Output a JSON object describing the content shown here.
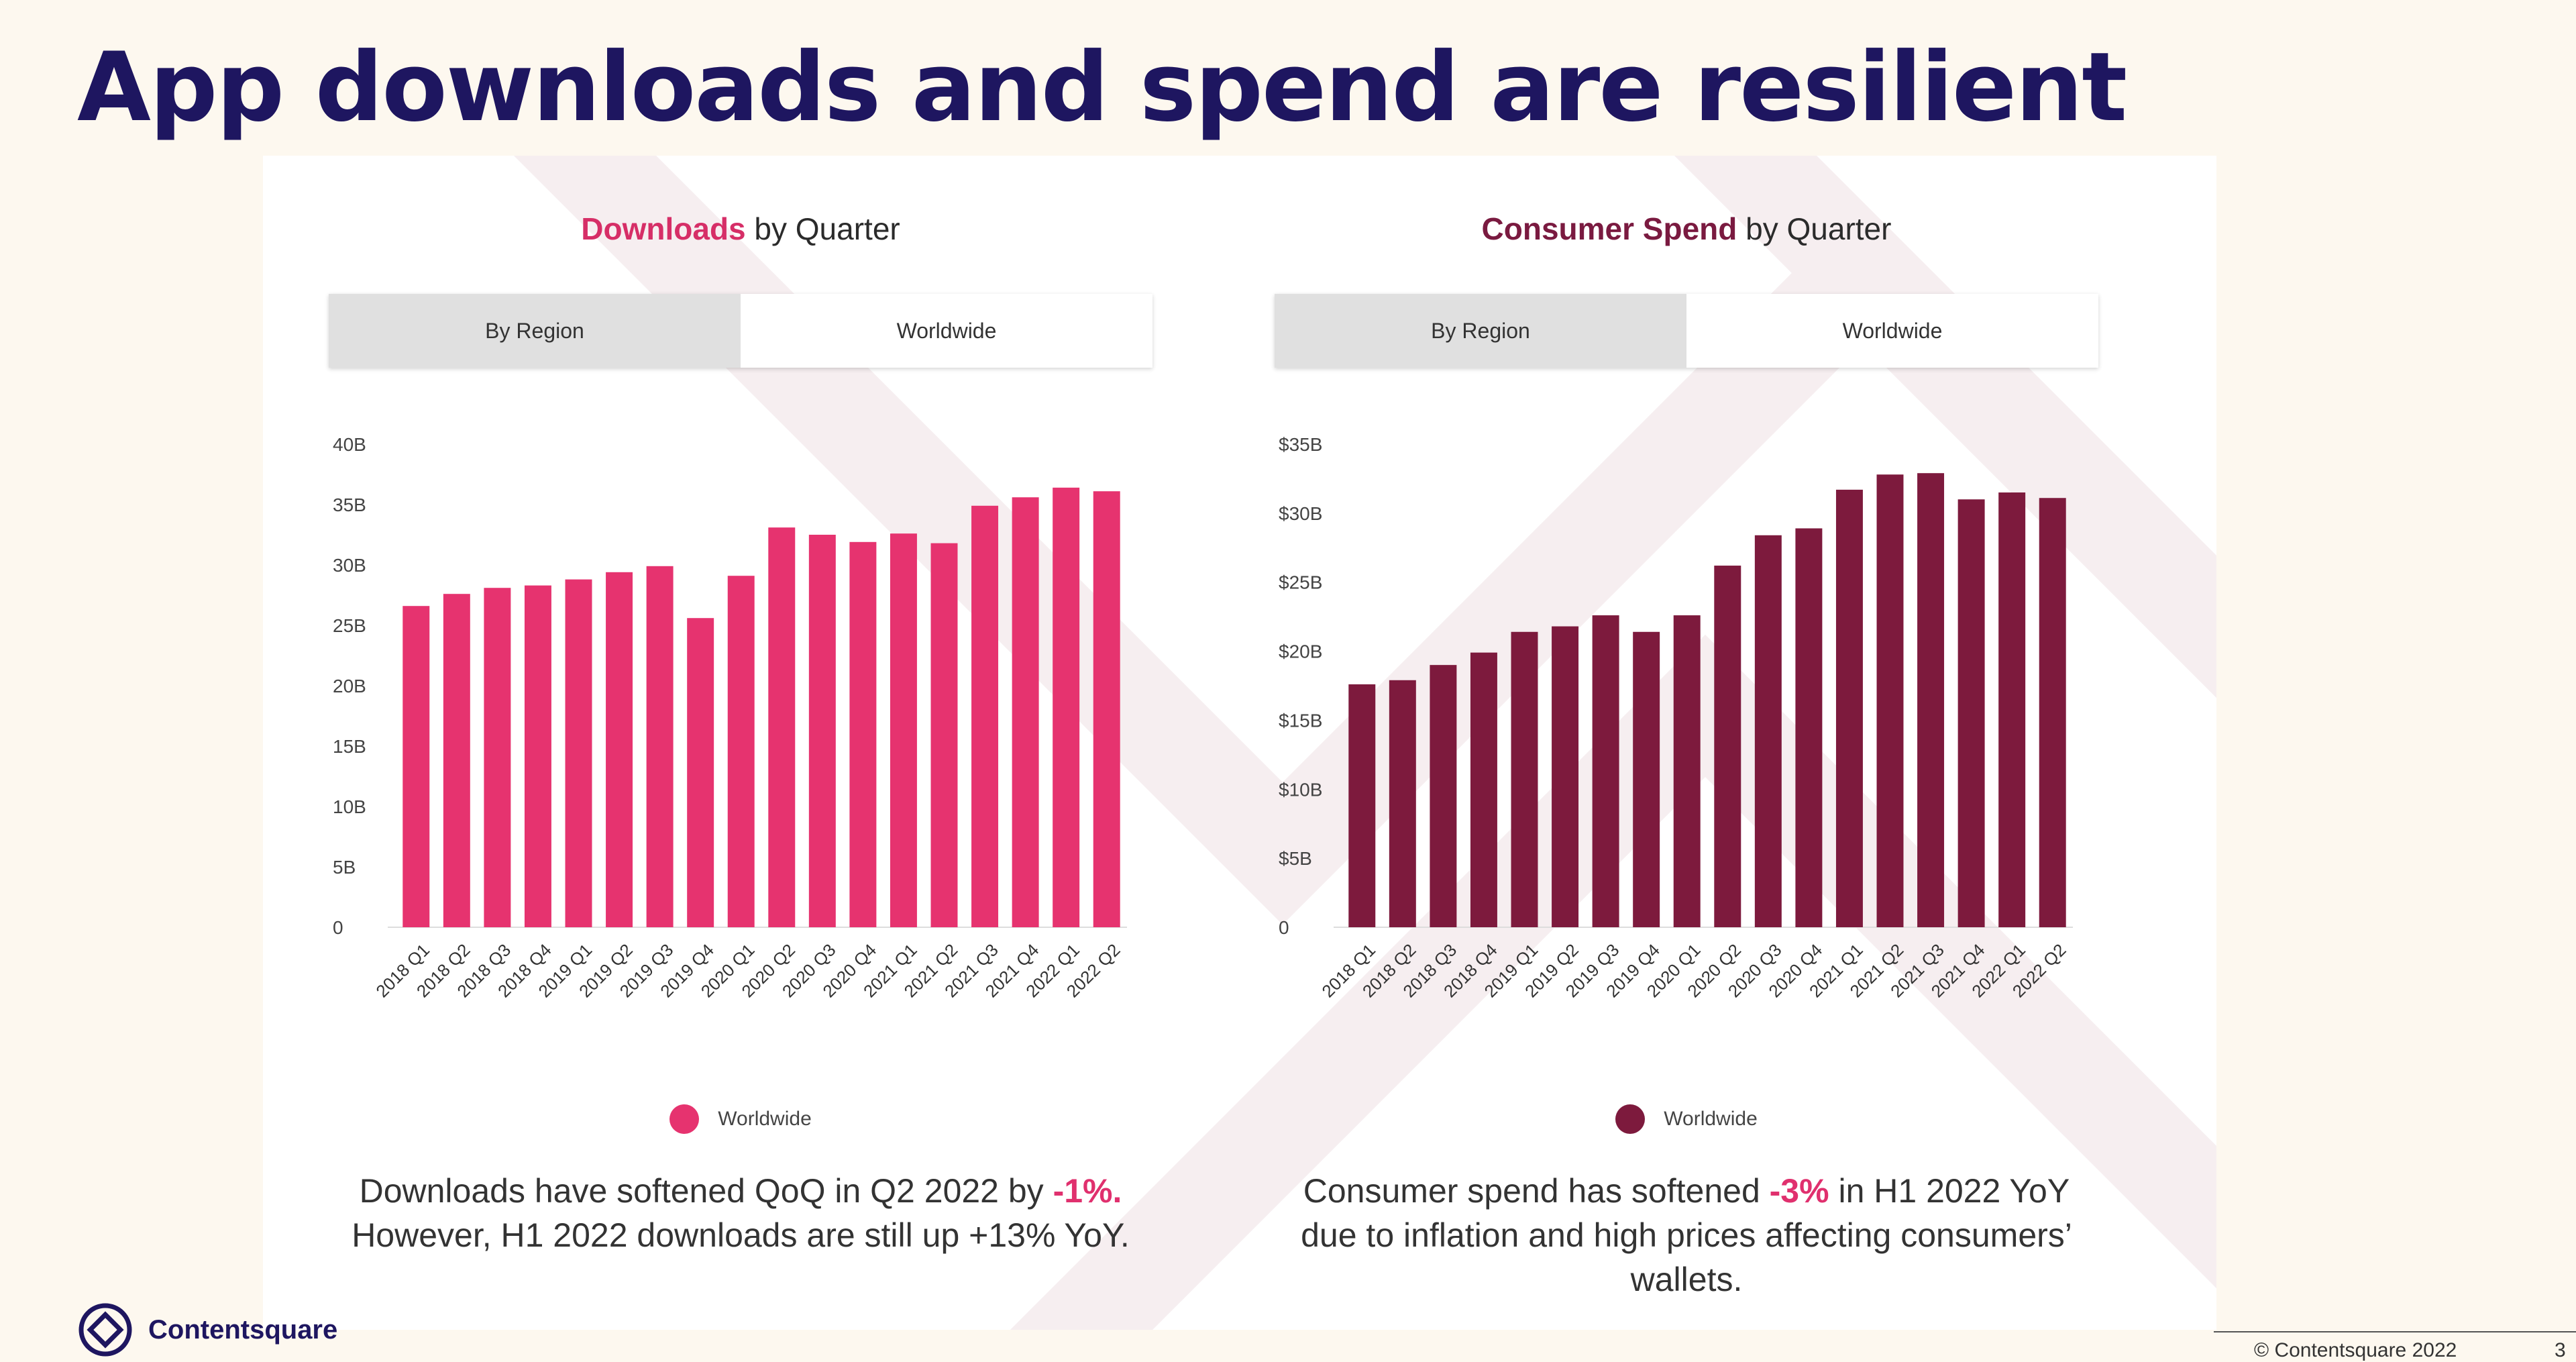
{
  "slide": {
    "title": "App downloads and spend are resilient",
    "brand": "Contentsquare",
    "footer": "© Contentsquare 2022",
    "page_number": "3"
  },
  "tabs": {
    "region": "By Region",
    "worldwide": "Worldwide"
  },
  "colors": {
    "downloads": "#e6336f",
    "spend": "#7d1a3d",
    "title": "#1e1660",
    "accent": "#e0306e"
  },
  "downloads": {
    "title_highlight": "Downloads",
    "title_rest": " by Quarter",
    "caption_a": "Downloads have softened QoQ in Q2 2022 by ",
    "caption_em": "-1%.",
    "caption_b": " However, H1 2022 downloads are still up +13% YoY."
  },
  "spend": {
    "title_highlight": "Consumer Spend",
    "title_rest": " by Quarter",
    "caption_a": "Consumer spend has softened ",
    "caption_em": "-3%",
    "caption_b": " in H1 2022 YoY due to inflation and high prices affecting consumers’ wallets."
  },
  "chart_data": [
    {
      "type": "bar",
      "title": "Downloads by Quarter",
      "categories": [
        "2018 Q1",
        "2018 Q2",
        "2018 Q3",
        "2018 Q4",
        "2019 Q1",
        "2019 Q2",
        "2019 Q3",
        "2019 Q4",
        "2020 Q1",
        "2020 Q2",
        "2020 Q3",
        "2020 Q4",
        "2021 Q1",
        "2021 Q2",
        "2021 Q3",
        "2021 Q4",
        "2022 Q1",
        "2022 Q2"
      ],
      "series": [
        {
          "name": "Worldwide",
          "values": [
            26.6,
            27.6,
            28.1,
            28.3,
            28.8,
            29.4,
            29.9,
            25.6,
            29.1,
            33.1,
            32.5,
            31.9,
            32.6,
            31.8,
            34.9,
            35.6,
            36.4,
            36.1
          ]
        }
      ],
      "ylim": [
        0,
        40
      ],
      "yticks": [
        0,
        5,
        10,
        15,
        20,
        25,
        30,
        35,
        40
      ],
      "ytick_labels": [
        "0",
        "5B",
        "10B",
        "15B",
        "20B",
        "25B",
        "30B",
        "35B",
        "40B"
      ],
      "legend": "bottom-center",
      "grid": false
    },
    {
      "type": "bar",
      "title": "Consumer Spend by Quarter",
      "categories": [
        "2018 Q1",
        "2018 Q2",
        "2018 Q3",
        "2018 Q4",
        "2019 Q1",
        "2019 Q2",
        "2019 Q3",
        "2019 Q4",
        "2020 Q1",
        "2020 Q2",
        "2020 Q3",
        "2020 Q4",
        "2021 Q1",
        "2021 Q2",
        "2021 Q3",
        "2021 Q4",
        "2022 Q1",
        "2022 Q2"
      ],
      "series": [
        {
          "name": "Worldwide",
          "values": [
            17.6,
            17.9,
            19.0,
            19.9,
            21.4,
            21.8,
            22.6,
            21.4,
            22.6,
            26.2,
            28.4,
            28.9,
            31.7,
            32.8,
            32.9,
            31.0,
            31.5,
            31.1
          ]
        }
      ],
      "ylim": [
        0,
        35
      ],
      "yticks": [
        0,
        5,
        10,
        15,
        20,
        25,
        30,
        35
      ],
      "ytick_labels": [
        "0",
        "$5B",
        "$10B",
        "$15B",
        "$20B",
        "$25B",
        "$30B",
        "$35B"
      ],
      "legend": "bottom-center",
      "grid": false
    }
  ]
}
